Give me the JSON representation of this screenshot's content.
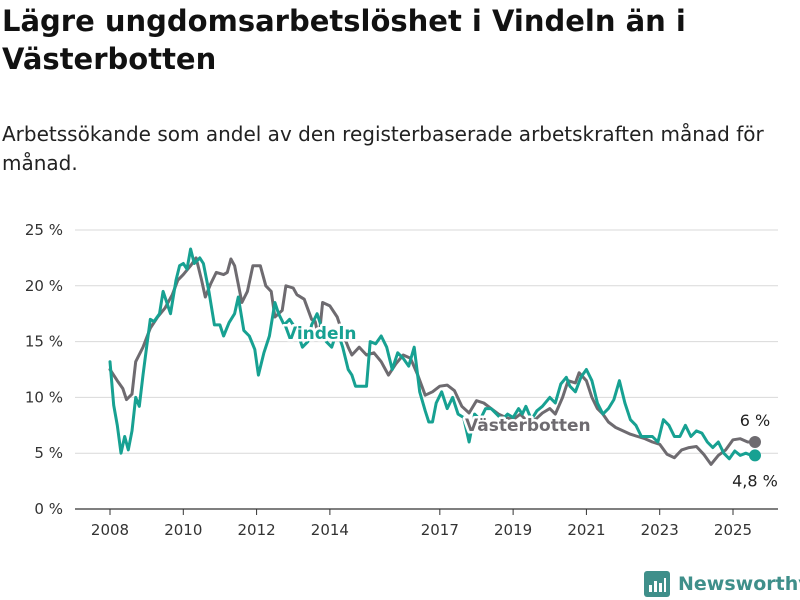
{
  "title": "Lägre ungdomsarbetslöshet i Vindeln än i Västerbotten",
  "subtitle": "Arbetssökande som andel av den registerbaserade arbetskraften månad för månad.",
  "brand": {
    "name": "Newsworthy",
    "icon": "newsworthy-logo-icon"
  },
  "chart_data": {
    "type": "line",
    "ylim": [
      0,
      25
    ],
    "y_ticks": [
      0,
      5,
      10,
      15,
      20,
      25
    ],
    "y_tick_labels": [
      "0 %",
      "5 %",
      "10 %",
      "15 %",
      "20 %",
      "25 %"
    ],
    "x_range": [
      2008,
      2026
    ],
    "x_ticks": [
      2008,
      2010,
      2012,
      2014,
      2017,
      2019,
      2021,
      2023,
      2025
    ],
    "x_tick_labels": [
      "2008",
      "2010",
      "2012",
      "2014",
      "2017",
      "2019",
      "2021",
      "2023",
      "2025"
    ],
    "grid": "horizontal",
    "legend": "inline labels",
    "series": [
      {
        "name": "Västerbotten",
        "color": "#6e6b70",
        "end_label": "6 %",
        "points": [
          [
            2008.0,
            12.5
          ],
          [
            2008.2,
            11.5
          ],
          [
            2008.35,
            10.8
          ],
          [
            2008.45,
            9.8
          ],
          [
            2008.6,
            10.3
          ],
          [
            2008.7,
            13.2
          ],
          [
            2008.9,
            14.5
          ],
          [
            2009.1,
            16.2
          ],
          [
            2009.3,
            17.2
          ],
          [
            2009.5,
            18.0
          ],
          [
            2009.7,
            19.2
          ],
          [
            2009.85,
            20.5
          ],
          [
            2010.0,
            21.0
          ],
          [
            2010.2,
            21.8
          ],
          [
            2010.35,
            22.5
          ],
          [
            2010.5,
            20.5
          ],
          [
            2010.6,
            19.0
          ],
          [
            2010.75,
            20.2
          ],
          [
            2010.9,
            21.2
          ],
          [
            2011.1,
            21.0
          ],
          [
            2011.2,
            21.2
          ],
          [
            2011.3,
            22.4
          ],
          [
            2011.4,
            21.8
          ],
          [
            2011.6,
            18.5
          ],
          [
            2011.75,
            19.5
          ],
          [
            2011.9,
            21.8
          ],
          [
            2012.1,
            21.8
          ],
          [
            2012.25,
            20.0
          ],
          [
            2012.4,
            19.5
          ],
          [
            2012.5,
            17.2
          ],
          [
            2012.7,
            17.8
          ],
          [
            2012.8,
            20.0
          ],
          [
            2013.0,
            19.8
          ],
          [
            2013.1,
            19.2
          ],
          [
            2013.3,
            18.8
          ],
          [
            2013.5,
            17.0
          ],
          [
            2013.6,
            16.8
          ],
          [
            2013.7,
            15.2
          ],
          [
            2013.8,
            18.5
          ],
          [
            2014.0,
            18.2
          ],
          [
            2014.2,
            17.2
          ],
          [
            2014.3,
            16.2
          ],
          [
            2014.5,
            14.5
          ],
          [
            2014.6,
            13.8
          ],
          [
            2014.8,
            14.5
          ],
          [
            2015.0,
            13.8
          ],
          [
            2015.2,
            14.0
          ],
          [
            2015.4,
            13.2
          ],
          [
            2015.6,
            12.0
          ],
          [
            2015.8,
            13.0
          ],
          [
            2016.0,
            13.8
          ],
          [
            2016.2,
            13.5
          ],
          [
            2016.4,
            12.0
          ],
          [
            2016.6,
            10.2
          ],
          [
            2016.8,
            10.5
          ],
          [
            2017.0,
            11.0
          ],
          [
            2017.2,
            11.1
          ],
          [
            2017.4,
            10.6
          ],
          [
            2017.6,
            9.2
          ],
          [
            2017.8,
            8.6
          ],
          [
            2018.0,
            9.7
          ],
          [
            2018.2,
            9.5
          ],
          [
            2018.4,
            9.0
          ],
          [
            2018.6,
            8.5
          ],
          [
            2018.8,
            8.2
          ],
          [
            2019.0,
            8.0
          ],
          [
            2019.2,
            8.5
          ],
          [
            2019.4,
            7.8
          ],
          [
            2019.6,
            8.0
          ],
          [
            2019.8,
            8.6
          ],
          [
            2020.0,
            9.0
          ],
          [
            2020.15,
            8.5
          ],
          [
            2020.35,
            10.0
          ],
          [
            2020.5,
            11.5
          ],
          [
            2020.7,
            11.3
          ],
          [
            2020.8,
            12.2
          ],
          [
            2021.0,
            11.5
          ],
          [
            2021.15,
            10.0
          ],
          [
            2021.3,
            9.0
          ],
          [
            2021.45,
            8.5
          ],
          [
            2021.6,
            7.8
          ],
          [
            2021.8,
            7.3
          ],
          [
            2022.0,
            7.0
          ],
          [
            2022.2,
            6.7
          ],
          [
            2022.4,
            6.5
          ],
          [
            2022.6,
            6.3
          ],
          [
            2022.8,
            6.0
          ],
          [
            2023.0,
            5.8
          ],
          [
            2023.2,
            4.9
          ],
          [
            2023.4,
            4.6
          ],
          [
            2023.6,
            5.3
          ],
          [
            2023.8,
            5.5
          ],
          [
            2024.0,
            5.6
          ],
          [
            2024.2,
            4.9
          ],
          [
            2024.4,
            4.0
          ],
          [
            2024.6,
            4.8
          ],
          [
            2024.8,
            5.3
          ],
          [
            2025.0,
            6.2
          ],
          [
            2025.2,
            6.3
          ],
          [
            2025.4,
            6.0
          ],
          [
            2025.6,
            6.0
          ]
        ]
      },
      {
        "name": "Vindeln",
        "color": "#17a192",
        "end_label": "4,8 %",
        "points": [
          [
            2008.0,
            13.2
          ],
          [
            2008.1,
            9.3
          ],
          [
            2008.2,
            7.5
          ],
          [
            2008.3,
            5.0
          ],
          [
            2008.4,
            6.5
          ],
          [
            2008.5,
            5.3
          ],
          [
            2008.6,
            7.0
          ],
          [
            2008.7,
            10.0
          ],
          [
            2008.8,
            9.2
          ],
          [
            2008.9,
            12.0
          ],
          [
            2009.0,
            14.5
          ],
          [
            2009.1,
            17.0
          ],
          [
            2009.2,
            16.8
          ],
          [
            2009.35,
            17.5
          ],
          [
            2009.45,
            19.5
          ],
          [
            2009.55,
            18.5
          ],
          [
            2009.65,
            17.5
          ],
          [
            2009.8,
            20.5
          ],
          [
            2009.9,
            21.8
          ],
          [
            2010.0,
            22.0
          ],
          [
            2010.1,
            21.5
          ],
          [
            2010.2,
            23.3
          ],
          [
            2010.3,
            22.0
          ],
          [
            2010.45,
            22.5
          ],
          [
            2010.55,
            22.0
          ],
          [
            2010.7,
            19.5
          ],
          [
            2010.85,
            16.5
          ],
          [
            2011.0,
            16.5
          ],
          [
            2011.1,
            15.5
          ],
          [
            2011.25,
            16.7
          ],
          [
            2011.4,
            17.5
          ],
          [
            2011.5,
            19.0
          ],
          [
            2011.65,
            16.0
          ],
          [
            2011.8,
            15.5
          ],
          [
            2011.95,
            14.3
          ],
          [
            2012.05,
            12.0
          ],
          [
            2012.2,
            14.0
          ],
          [
            2012.35,
            15.5
          ],
          [
            2012.5,
            18.5
          ],
          [
            2012.6,
            17.5
          ],
          [
            2012.75,
            16.5
          ],
          [
            2012.9,
            17.0
          ],
          [
            2013.1,
            16.0
          ],
          [
            2013.25,
            14.5
          ],
          [
            2013.4,
            15.0
          ],
          [
            2013.5,
            16.5
          ],
          [
            2013.65,
            17.5
          ],
          [
            2013.8,
            16.0
          ],
          [
            2013.9,
            15.0
          ],
          [
            2014.05,
            14.5
          ],
          [
            2014.2,
            16.0
          ],
          [
            2014.35,
            14.5
          ],
          [
            2014.5,
            12.5
          ],
          [
            2014.6,
            12.0
          ],
          [
            2014.7,
            11.0
          ],
          [
            2014.9,
            11.0
          ],
          [
            2015.0,
            11.0
          ],
          [
            2015.1,
            15.0
          ],
          [
            2015.25,
            14.8
          ],
          [
            2015.4,
            15.5
          ],
          [
            2015.55,
            14.5
          ],
          [
            2015.7,
            12.5
          ],
          [
            2015.85,
            14.0
          ],
          [
            2016.0,
            13.5
          ],
          [
            2016.15,
            12.8
          ],
          [
            2016.3,
            14.5
          ],
          [
            2016.45,
            10.5
          ],
          [
            2016.6,
            8.8
          ],
          [
            2016.7,
            7.8
          ],
          [
            2016.8,
            7.8
          ],
          [
            2016.9,
            9.5
          ],
          [
            2017.05,
            10.5
          ],
          [
            2017.2,
            9.0
          ],
          [
            2017.35,
            10.0
          ],
          [
            2017.5,
            8.5
          ],
          [
            2017.65,
            8.2
          ],
          [
            2017.8,
            6.0
          ],
          [
            2017.95,
            8.5
          ],
          [
            2018.1,
            8.0
          ],
          [
            2018.25,
            9.0
          ],
          [
            2018.4,
            9.0
          ],
          [
            2018.55,
            8.5
          ],
          [
            2018.7,
            8.0
          ],
          [
            2018.85,
            8.5
          ],
          [
            2019.0,
            8.2
          ],
          [
            2019.15,
            9.0
          ],
          [
            2019.25,
            8.5
          ],
          [
            2019.35,
            9.2
          ],
          [
            2019.5,
            8.0
          ],
          [
            2019.65,
            8.8
          ],
          [
            2019.8,
            9.2
          ],
          [
            2020.0,
            10.0
          ],
          [
            2020.15,
            9.5
          ],
          [
            2020.3,
            11.2
          ],
          [
            2020.45,
            11.8
          ],
          [
            2020.55,
            11.0
          ],
          [
            2020.7,
            10.5
          ],
          [
            2020.85,
            11.8
          ],
          [
            2021.0,
            12.5
          ],
          [
            2021.15,
            11.5
          ],
          [
            2021.3,
            9.5
          ],
          [
            2021.45,
            8.5
          ],
          [
            2021.6,
            9.0
          ],
          [
            2021.75,
            9.8
          ],
          [
            2021.9,
            11.5
          ],
          [
            2022.05,
            9.5
          ],
          [
            2022.2,
            8.0
          ],
          [
            2022.35,
            7.5
          ],
          [
            2022.5,
            6.5
          ],
          [
            2022.65,
            6.5
          ],
          [
            2022.8,
            6.5
          ],
          [
            2022.95,
            6.0
          ],
          [
            2023.1,
            8.0
          ],
          [
            2023.25,
            7.5
          ],
          [
            2023.4,
            6.5
          ],
          [
            2023.55,
            6.5
          ],
          [
            2023.7,
            7.5
          ],
          [
            2023.85,
            6.5
          ],
          [
            2024.0,
            7.0
          ],
          [
            2024.15,
            6.8
          ],
          [
            2024.3,
            6.0
          ],
          [
            2024.45,
            5.5
          ],
          [
            2024.6,
            6.0
          ],
          [
            2024.75,
            5.0
          ],
          [
            2024.9,
            4.5
          ],
          [
            2025.05,
            5.2
          ],
          [
            2025.2,
            4.8
          ],
          [
            2025.35,
            5.0
          ],
          [
            2025.5,
            4.8
          ],
          [
            2025.6,
            4.8
          ]
        ]
      }
    ]
  }
}
